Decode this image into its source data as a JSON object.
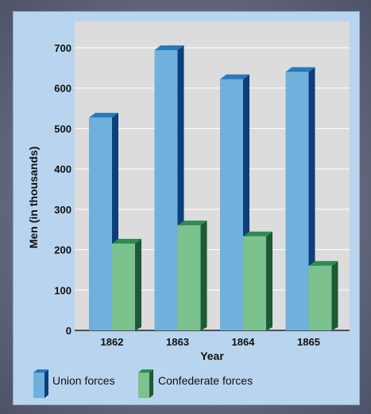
{
  "chart_data": {
    "type": "bar",
    "categories": [
      "1862",
      "1863",
      "1864",
      "1865"
    ],
    "series": [
      {
        "name": "Union forces",
        "values": [
          527,
          694,
          622,
          640
        ],
        "color": "#6fb0dc",
        "shade": "#0d3f7a",
        "top": "#2a78bc"
      },
      {
        "name": "Confederate forces",
        "values": [
          215,
          260,
          233,
          160
        ],
        "color": "#7cc28e",
        "shade": "#1c5a34",
        "top": "#2f8c52"
      }
    ],
    "yticks": [
      "0",
      "100",
      "200",
      "300",
      "400",
      "500",
      "600",
      "700"
    ],
    "ylim": [
      0,
      765
    ],
    "xlabel": "Year",
    "ylabel": "Men (in thousands)",
    "grid": true,
    "legend_position": "bottom-left",
    "colors": {
      "plot_background": "#dcdcdc",
      "panel_background": "#b9d4ee",
      "gridline": "#ffffff"
    }
  }
}
